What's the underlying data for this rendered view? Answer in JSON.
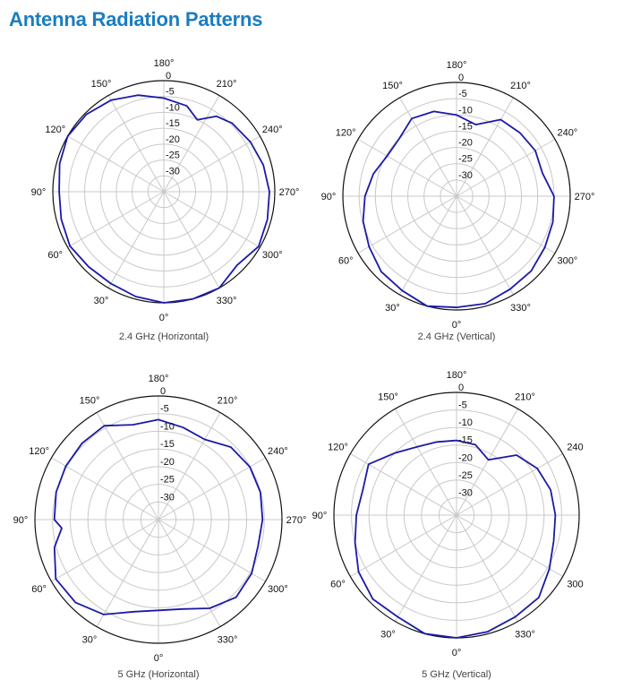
{
  "page_title": "Antenna Radiation Patterns",
  "colors": {
    "title": "#1a7dc0",
    "trace": "#1a1aa8",
    "grid": "#c8c8c8",
    "frame": "#111111"
  },
  "chart_data": [
    {
      "type": "polar-line",
      "title": "2.4 GHz (Horizontal)",
      "angle_direction": "clockwise",
      "zero_location": "bottom",
      "rlim": [
        -35,
        0
      ],
      "radial_ticks": [
        "0",
        "-5",
        "-10",
        "-15",
        "-20",
        "-25",
        "-30"
      ],
      "angle_labels": [
        "0°",
        "30°",
        "60°",
        "90°",
        "120°",
        "150°",
        "180°",
        "210°",
        "240°",
        "270°",
        "300°",
        "330°"
      ],
      "angles": [
        0,
        15,
        30,
        45,
        60,
        75,
        90,
        105,
        120,
        135,
        150,
        165,
        180,
        195,
        205,
        215,
        225,
        240,
        255,
        270,
        285,
        300,
        315,
        330,
        345
      ],
      "values": [
        0,
        -0.8,
        -1.6,
        -1.5,
        -0.8,
        -1.5,
        -2,
        -1,
        0,
        -0.5,
        -1.7,
        -3.5,
        -5.5,
        -7,
        -10,
        -6,
        -4.5,
        -3.5,
        -2.5,
        -1.7,
        -1.2,
        -0.5,
        -2.3,
        0,
        0
      ]
    },
    {
      "type": "polar-line",
      "title": "2.4 GHz (Vertical)",
      "angle_direction": "clockwise",
      "zero_location": "bottom",
      "rlim": [
        -35,
        0
      ],
      "radial_ticks": [
        "0",
        "-5",
        "-10",
        "-15",
        "-20",
        "-25",
        "-30"
      ],
      "angle_labels": [
        "0°",
        "30°",
        "60°",
        "90°",
        "120°",
        "150°",
        "180°",
        "210°",
        "240°",
        "270°",
        "300°",
        "330°"
      ],
      "angles": [
        0,
        15,
        30,
        45,
        60,
        75,
        90,
        105,
        120,
        135,
        150,
        165,
        180,
        195,
        210,
        225,
        240,
        255,
        270,
        285,
        300,
        315,
        330,
        345
      ],
      "values": [
        -0.8,
        0,
        -1.5,
        -2.2,
        -3.9,
        -5.2,
        -6.8,
        -8.5,
        -10.3,
        -10,
        -7.4,
        -8,
        -10,
        -12.2,
        -7.8,
        -7.4,
        -7,
        -7.6,
        -5,
        -4.3,
        -3.6,
        -2.5,
        -2,
        -0.8
      ]
    },
    {
      "type": "polar-line",
      "title": "5 GHz (Horizontal)",
      "angle_direction": "clockwise",
      "zero_location": "bottom",
      "rlim": [
        -35,
        0
      ],
      "radial_ticks": [
        "0",
        "-5",
        "-10",
        "-15",
        "-20",
        "-25",
        "-30"
      ],
      "angle_labels": [
        "0°",
        "30°",
        "60°",
        "90°",
        "120°",
        "150°",
        "180°",
        "210°",
        "240°",
        "270°",
        "300°",
        "330°"
      ],
      "angles": [
        0,
        15,
        30,
        45,
        60,
        75,
        85,
        90,
        105,
        120,
        135,
        150,
        165,
        180,
        195,
        210,
        225,
        240,
        255,
        270,
        285,
        300,
        315,
        330,
        345
      ],
      "values": [
        -9.3,
        -8,
        -4,
        -1.8,
        -1.4,
        -4.5,
        -7.5,
        -5.5,
        -5,
        -4.7,
        -4.4,
        -4.3,
        -7.2,
        -6.7,
        -8,
        -8.8,
        -6,
        -5.1,
        -5.1,
        -5.5,
        -5.8,
        -4.5,
        -3.9,
        -6,
        -8.8
      ]
    },
    {
      "type": "polar-line",
      "title": "5 GHz (Vertical)",
      "angle_direction": "clockwise",
      "zero_location": "bottom",
      "rlim": [
        -35,
        0
      ],
      "radial_ticks": [
        "0",
        "-5",
        "-10",
        "-15",
        "-20",
        "-25",
        "-30"
      ],
      "angle_labels": [
        "0°",
        "30°",
        "60°",
        "90°",
        "120°",
        "150°",
        "180°",
        "210°",
        "240",
        "",
        "300",
        "330°"
      ],
      "angles": [
        0,
        15,
        30,
        45,
        60,
        75,
        90,
        105,
        120,
        135,
        150,
        165,
        180,
        195,
        210,
        225,
        240,
        255,
        270,
        285,
        300,
        315,
        330,
        345
      ],
      "values": [
        0,
        0,
        -1.5,
        -1.2,
        -2.7,
        -5,
        -6.4,
        -7.3,
        -6,
        -10,
        -12.5,
        -13.4,
        -13.7,
        -14.2,
        -16.8,
        -10.8,
        -8.4,
        -7.2,
        -6.8,
        -6.3,
        -4.4,
        -1.8,
        -1.5,
        -0.6
      ]
    }
  ]
}
